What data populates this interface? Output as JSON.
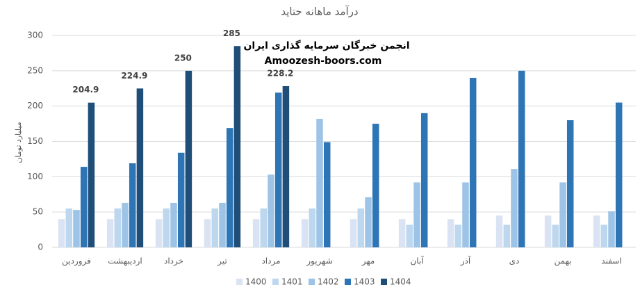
{
  "chart_data": {
    "type": "bar",
    "title": "درآمد ماهانه حتاید",
    "y_label": "میلیارد تومان",
    "annotations": [
      "انجمن خبرگان سرمایه گذاری ایران",
      "Amoozesh-boors.com"
    ],
    "categories": [
      "فروردین",
      "اردیبهشت",
      "خرداد",
      "تیر",
      "مرداد",
      "شهریور",
      "مهر",
      "آبان",
      "آذر",
      "دی",
      "بهمن",
      "اسفند"
    ],
    "series": [
      {
        "name": "1400",
        "color": "#dae3f3",
        "values": [
          40,
          40,
          40,
          40,
          40,
          40,
          40,
          40,
          40,
          45,
          45,
          45
        ]
      },
      {
        "name": "1401",
        "color": "#bdd7ee",
        "values": [
          55,
          55,
          55,
          55,
          55,
          55,
          55,
          32,
          32,
          32,
          32,
          32
        ]
      },
      {
        "name": "1402",
        "color": "#9dc3e6",
        "values": [
          53,
          63,
          63,
          63,
          103,
          182,
          71,
          92,
          92,
          111,
          92,
          51
        ]
      },
      {
        "name": "1403",
        "color": "#2e75b6",
        "values": [
          114,
          119,
          134,
          169,
          219,
          149,
          175,
          190,
          240,
          250,
          180,
          205
        ]
      },
      {
        "name": "1404",
        "color": "#1f4e79",
        "show_labels": true,
        "values": [
          204.9,
          224.9,
          250,
          285,
          228.2,
          null,
          null,
          null,
          null,
          null,
          null,
          null
        ]
      }
    ],
    "ylim": [
      0,
      300
    ],
    "yticks": [
      0,
      50,
      100,
      150,
      200,
      250,
      300
    ],
    "grid": true,
    "legend": "bottom"
  }
}
